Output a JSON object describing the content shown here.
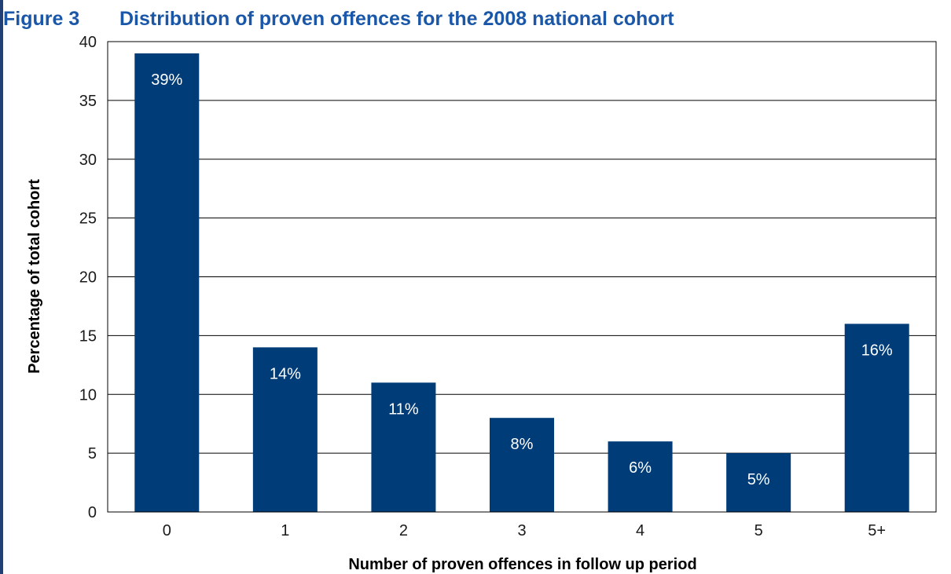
{
  "figure": {
    "number": "Figure 3",
    "title": "Distribution of proven offences for the 2008 national cohort"
  },
  "colors": {
    "bar": "#003c78",
    "title": "#1a57a8",
    "rule": "#1f3f76"
  },
  "chart_data": {
    "type": "bar",
    "title": "Distribution of proven offences for the 2008 national cohort",
    "xlabel": "Number of proven offences in follow up period",
    "ylabel": "Percentage of total cohort",
    "categories": [
      "0",
      "1",
      "2",
      "3",
      "4",
      "5",
      "5+"
    ],
    "values": [
      39,
      14,
      11,
      8,
      6,
      5,
      16
    ],
    "data_labels": [
      "39%",
      "14%",
      "11%",
      "8%",
      "6%",
      "5%",
      "16%"
    ],
    "yticks": [
      "0",
      "5",
      "10",
      "15",
      "20",
      "25",
      "30",
      "35",
      "40"
    ],
    "ylim": [
      0,
      40
    ],
    "grid": true,
    "legend": "none"
  }
}
